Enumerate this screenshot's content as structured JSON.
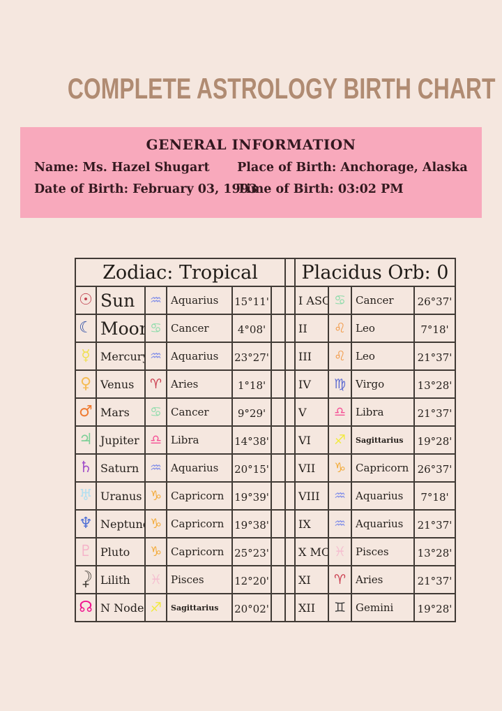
{
  "page": {
    "title": "COMPLETE ASTROLOGY BIRTH CHART",
    "background_color": "#f5e7df",
    "panel_pink": "#f8a9bc",
    "title_color": "#b08b72",
    "table_border_color": "#403a35"
  },
  "general_info": {
    "heading": "GENERAL INFORMATION",
    "fields": [
      {
        "label": "Name:",
        "value": "Ms. Hazel Shugart"
      },
      {
        "label": "Place of Birth:",
        "value": "Anchorage, Alaska"
      },
      {
        "label": "Date of Birth:",
        "value": "February 03, 1993"
      },
      {
        "label": "Time of Birth:",
        "value": "03:02 PM"
      }
    ]
  },
  "zodiac_table": {
    "header": "Zodiac: Tropical",
    "rows": [
      {
        "planet": "Sun",
        "planet_icon": "sun-icon",
        "planet_glyph": "☉",
        "planet_color": "#c0404e",
        "sign": "Aquarius",
        "sign_icon": "aquarius-icon",
        "sign_glyph": "♒",
        "sign_color": "#8490e8",
        "degree": "15°11'"
      },
      {
        "planet": "Moon",
        "planet_icon": "moon-icon",
        "planet_glyph": "☾",
        "planet_color": "#2f4fa5",
        "sign": "Cancer",
        "sign_icon": "cancer-icon",
        "sign_glyph": "♋",
        "sign_color": "#8fdcab",
        "degree": "4°08'"
      },
      {
        "planet": "Mercury",
        "planet_icon": "mercury-icon",
        "planet_glyph": "☿",
        "planet_color": "#f0e052",
        "sign": "Aquarius",
        "sign_icon": "aquarius-icon",
        "sign_glyph": "♒",
        "sign_color": "#8490e8",
        "degree": "23°27'"
      },
      {
        "planet": "Venus",
        "planet_icon": "venus-icon",
        "planet_glyph": "♀",
        "planet_color": "#f5bb54",
        "sign": "Aries",
        "sign_icon": "aries-icon",
        "sign_glyph": "♈",
        "sign_color": "#c9384a",
        "degree": "1°18'"
      },
      {
        "planet": "Mars",
        "planet_icon": "mars-icon",
        "planet_glyph": "♂",
        "planet_color": "#ef7a30",
        "sign": "Cancer",
        "sign_icon": "cancer-icon",
        "sign_glyph": "♋",
        "sign_color": "#8fdcab",
        "degree": "9°29'"
      },
      {
        "planet": "Jupiter",
        "planet_icon": "jupiter-icon",
        "planet_glyph": "♃",
        "planet_color": "#7ccf96",
        "sign": "Libra",
        "sign_icon": "libra-icon",
        "sign_glyph": "♎",
        "sign_color": "#f54f95",
        "degree": "14°38'"
      },
      {
        "planet": "Saturn",
        "planet_icon": "saturn-icon",
        "planet_glyph": "♄",
        "planet_color": "#a14fc9",
        "sign": "Aquarius",
        "sign_icon": "aquarius-icon",
        "sign_glyph": "♒",
        "sign_color": "#8490e8",
        "degree": "20°15'"
      },
      {
        "planet": "Uranus",
        "planet_icon": "uranus-icon",
        "planet_glyph": "♅",
        "planet_color": "#b3dff0",
        "sign": "Capricorn",
        "sign_icon": "capricorn-icon",
        "sign_glyph": "♑",
        "sign_color": "#f3ab3a",
        "degree": "19°39'"
      },
      {
        "planet": "Neptune",
        "planet_icon": "neptune-icon",
        "planet_glyph": "♆",
        "planet_color": "#5272d6",
        "sign": "Capricorn",
        "sign_icon": "capricorn-icon",
        "sign_glyph": "♑",
        "sign_color": "#f3ab3a",
        "degree": "19°38'"
      },
      {
        "planet": "Pluto",
        "planet_icon": "pluto-icon",
        "planet_glyph": "♇",
        "planet_color": "#f5b3c9",
        "sign": "Capricorn",
        "sign_icon": "capricorn-icon",
        "sign_glyph": "♑",
        "sign_color": "#f3ab3a",
        "degree": "25°23'"
      },
      {
        "planet": "Lilith",
        "planet_icon": "lilith-icon",
        "planet_glyph": "☽",
        "planet_glyph2": "+",
        "planet_color": "#45403a",
        "sign": "Pisces",
        "sign_icon": "pisces-icon",
        "sign_glyph": "♓",
        "sign_color": "#f5bfd0",
        "degree": "12°20'"
      },
      {
        "planet": "N Node",
        "planet_icon": "north-node-icon",
        "planet_glyph": "☊",
        "planet_color": "#f0128e",
        "sign": "Sagittarius",
        "sign_icon": "sagittarius-icon",
        "sign_glyph": "♐",
        "sign_color": "#f2ea3d",
        "degree": "20°02'"
      }
    ]
  },
  "houses_table": {
    "header": "Placidus Orb: 0",
    "rows": [
      {
        "house": "I ASC",
        "sign": "Cancer",
        "sign_icon": "cancer-icon",
        "sign_glyph": "♋",
        "sign_color": "#8fdcab",
        "degree": "26°37'"
      },
      {
        "house": "II",
        "sign": "Leo",
        "sign_icon": "leo-icon",
        "sign_glyph": "♌",
        "sign_color": "#f29a47",
        "degree": "7°18'"
      },
      {
        "house": "III",
        "sign": "Leo",
        "sign_icon": "leo-icon",
        "sign_glyph": "♌",
        "sign_color": "#f29a47",
        "degree": "21°37'"
      },
      {
        "house": "IV",
        "sign": "Virgo",
        "sign_icon": "virgo-icon",
        "sign_glyph": "♍",
        "sign_color": "#5d6bd1",
        "degree": "13°28'"
      },
      {
        "house": "V",
        "sign": "Libra",
        "sign_icon": "libra-icon",
        "sign_glyph": "♎",
        "sign_color": "#f54f95",
        "degree": "21°37'"
      },
      {
        "house": "VI",
        "sign": "Sagittarius",
        "sign_icon": "sagittarius-icon",
        "sign_glyph": "♐",
        "sign_color": "#f2ea3d",
        "degree": "19°28'"
      },
      {
        "house": "VII",
        "sign": "Capricorn",
        "sign_icon": "capricorn-icon",
        "sign_glyph": "♑",
        "sign_color": "#f3ab3a",
        "degree": "26°37'"
      },
      {
        "house": "VIII",
        "sign": "Aquarius",
        "sign_icon": "aquarius-icon",
        "sign_glyph": "♒",
        "sign_color": "#8490e8",
        "degree": "7°18'"
      },
      {
        "house": "IX",
        "sign": "Aquarius",
        "sign_icon": "aquarius-icon",
        "sign_glyph": "♒",
        "sign_color": "#8490e8",
        "degree": "21°37'"
      },
      {
        "house": "X MC",
        "sign": "Pisces",
        "sign_icon": "pisces-icon",
        "sign_glyph": "♓",
        "sign_color": "#f5bfd0",
        "degree": "13°28'"
      },
      {
        "house": "XI",
        "sign": "Aries",
        "sign_icon": "aries-icon",
        "sign_glyph": "♈",
        "sign_color": "#c9384a",
        "degree": "21°37'"
      },
      {
        "house": "XII",
        "sign": "Gemini",
        "sign_icon": "gemini-icon",
        "sign_glyph": "♊",
        "sign_color": "#3c3c3c",
        "degree": "19°28'"
      }
    ]
  }
}
